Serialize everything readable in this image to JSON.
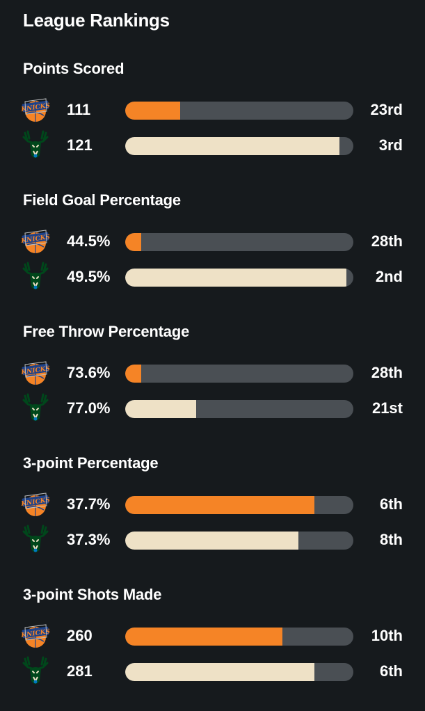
{
  "page": {
    "title": "League Rankings"
  },
  "colors": {
    "background": "#161a1d",
    "track": "#4a4f54",
    "knicks_fill": "#f58426",
    "bucks_fill": "#eee1c6"
  },
  "teams": {
    "knicks": {
      "icon": "knicks-logo-icon"
    },
    "bucks": {
      "icon": "bucks-logo-icon"
    }
  },
  "sections": [
    {
      "title": "Points Scored",
      "knicks": {
        "value": "111",
        "rank": "23rd",
        "fill_fraction": 0.24
      },
      "bucks": {
        "value": "121",
        "rank": "3rd",
        "fill_fraction": 0.94
      }
    },
    {
      "title": "Field Goal Percentage",
      "knicks": {
        "value": "44.5%",
        "rank": "28th",
        "fill_fraction": 0.07
      },
      "bucks": {
        "value": "49.5%",
        "rank": "2nd",
        "fill_fraction": 0.97
      }
    },
    {
      "title": "Free Throw Percentage",
      "knicks": {
        "value": "73.6%",
        "rank": "28th",
        "fill_fraction": 0.07
      },
      "bucks": {
        "value": "77.0%",
        "rank": "21st",
        "fill_fraction": 0.31
      }
    },
    {
      "title": "3-point Percentage",
      "knicks": {
        "value": "37.7%",
        "rank": "6th",
        "fill_fraction": 0.83
      },
      "bucks": {
        "value": "37.3%",
        "rank": "8th",
        "fill_fraction": 0.76
      }
    },
    {
      "title": "3-point Shots Made",
      "knicks": {
        "value": "260",
        "rank": "10th",
        "fill_fraction": 0.69
      },
      "bucks": {
        "value": "281",
        "rank": "6th",
        "fill_fraction": 0.83
      }
    }
  ]
}
